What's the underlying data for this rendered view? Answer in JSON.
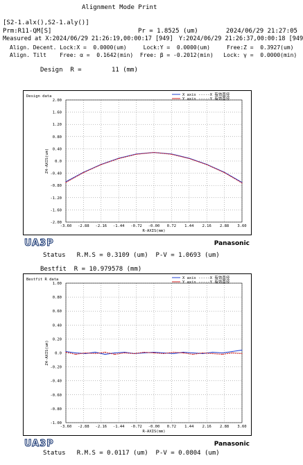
{
  "header": {
    "title": "Alignment Mode Print",
    "files": "[S2-1.alx(),S2-1.aly()]",
    "prm": "Prm:R11-QM[S]",
    "pr": "Pr = 1.8525 (um)",
    "print_time": "2024/06/29 21:27:05",
    "measured": "Measured at X:2024/06/29 21:26:19,00:00:17 [949]",
    "measured_y": "Y:2024/06/29 21:26:37,00:00:18 [949]",
    "decent_row": "Align. Decent. Lock:X =  0.0000(um)     Lock:Y =  0.0000(um)     Free:Z =  0.3927(um)",
    "tilt_row": "Align. Tilt    Free: α =  0.1642(min)  Free: β = -0.2012(min)   Lock: γ =  0.0000(min)",
    "design_line": "Design  R =        11 (mm)",
    "status1": "Status   R.M.S = 0.3109 (um)  P-V = 1.0693 (um)",
    "bestfit_line": "Bestfit  R = 10.979578 (mm)",
    "status2": "Status   R.M.S = 0.0117 (um)  P-V = 0.0804 (um)"
  },
  "brand": {
    "left": "UA3P",
    "right": "Panasonic"
  },
  "colors": {
    "x_axis": "#1f3fd1",
    "y_axis": "#d11f1f"
  },
  "chart_data": [
    {
      "type": "line",
      "title": "Design data",
      "xlabel": "R-AXIS(mm)",
      "ylabel": "Z4-AXIS(um)",
      "xlim": [
        -3.6,
        3.6
      ],
      "ylim": [
        -2.0,
        2.0
      ],
      "xticks": [
        "-3.60",
        "-2.88",
        "-2.16",
        "-1.44",
        "-0.72",
        "-0.00",
        "0.72",
        "1.44",
        "2.16",
        "2.88",
        "3.60"
      ],
      "yticks": [
        "2.00",
        "1.60",
        "1.20",
        "0.80",
        "0.40",
        "0.0",
        "-0.40",
        "-0.80",
        "-1.20",
        "-1.60",
        "-2.00"
      ],
      "legend": [
        "X axis -----X 有効直径",
        "Y axis -----Y 有効直径"
      ],
      "series": [
        {
          "name": "X axis",
          "x": [
            -3.6,
            -2.88,
            -2.16,
            -1.44,
            -0.72,
            0,
            0.72,
            1.44,
            2.16,
            2.88,
            3.6
          ],
          "values": [
            -0.68,
            -0.37,
            -0.11,
            0.09,
            0.23,
            0.28,
            0.23,
            0.09,
            -0.11,
            -0.37,
            -0.7
          ]
        },
        {
          "name": "Y axis",
          "x": [
            -3.6,
            -2.88,
            -2.16,
            -1.44,
            -0.72,
            0,
            0.72,
            1.44,
            2.16,
            2.88,
            3.6
          ],
          "values": [
            -0.7,
            -0.38,
            -0.12,
            0.08,
            0.22,
            0.28,
            0.22,
            0.08,
            -0.12,
            -0.38,
            -0.72
          ]
        }
      ]
    },
    {
      "type": "line",
      "title": "Bestfit R data",
      "xlabel": "R-AXIS(mm)",
      "ylabel": "Z4-AXIS(um)",
      "xlim": [
        -3.6,
        3.6
      ],
      "ylim": [
        -1.0,
        1.0
      ],
      "xticks": [
        "-3.60",
        "-2.88",
        "-2.16",
        "-1.44",
        "-0.72",
        "-0.00",
        "0.72",
        "1.44",
        "2.16",
        "2.88",
        "3.60"
      ],
      "yticks": [
        "1.00",
        "0.80",
        "0.60",
        "0.40",
        "0.20",
        "0.0",
        "-0.20",
        "-0.40",
        "-0.60",
        "-0.80",
        "-1.00"
      ],
      "legend": [
        "X axis -----X 有効直径",
        "Y axis -----Y 有効直径"
      ],
      "series": [
        {
          "name": "X axis",
          "x": [
            -3.6,
            -3.2,
            -2.8,
            -2.4,
            -2.0,
            -1.6,
            -1.2,
            -0.8,
            -0.4,
            0,
            0.4,
            0.8,
            1.2,
            1.6,
            2.0,
            2.4,
            2.8,
            3.2,
            3.6
          ],
          "values": [
            0.02,
            0.0,
            -0.01,
            0.01,
            -0.02,
            0.0,
            0.01,
            -0.01,
            0.0,
            0.01,
            0.0,
            -0.01,
            0.01,
            0.0,
            -0.01,
            0.01,
            0.0,
            0.02,
            0.04
          ]
        },
        {
          "name": "Y axis",
          "x": [
            -3.6,
            -3.2,
            -2.8,
            -2.4,
            -2.0,
            -1.6,
            -1.2,
            -0.8,
            -0.4,
            0,
            0.4,
            0.8,
            1.2,
            1.6,
            2.0,
            2.4,
            2.8,
            3.2,
            3.6
          ],
          "values": [
            0.01,
            -0.02,
            0.0,
            -0.01,
            0.01,
            -0.02,
            0.0,
            -0.01,
            0.01,
            0.0,
            -0.01,
            0.01,
            0.0,
            -0.02,
            0.0,
            -0.01,
            -0.02,
            0.0,
            -0.01
          ]
        }
      ]
    }
  ]
}
